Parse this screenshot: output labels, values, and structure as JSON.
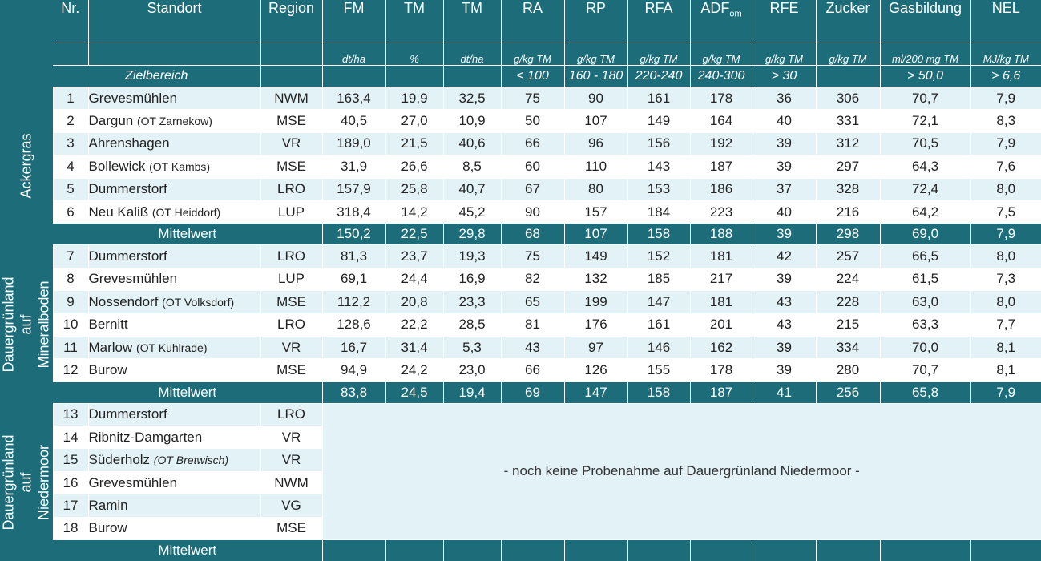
{
  "headers": {
    "nr": "Nr.",
    "standort": "Standort",
    "region": "Region",
    "cols": [
      {
        "name": "FM",
        "unit": "dt/ha"
      },
      {
        "name": "TM",
        "unit": "%"
      },
      {
        "name": "TM",
        "unit": "dt/ha"
      },
      {
        "name": "RA",
        "unit": "g/kg TM"
      },
      {
        "name": "RP",
        "unit": "g/kg TM"
      },
      {
        "name": "RFA",
        "unit": "g/kg TM"
      },
      {
        "name": "ADF",
        "sub": "om",
        "unit": "g/kg TM"
      },
      {
        "name": "RFE",
        "unit": "g/kg TM"
      },
      {
        "name": "Zucker",
        "unit": "g/kg TM"
      },
      {
        "name": "Gasbildung",
        "unit": "ml/200 mg TM"
      },
      {
        "name": "NEL",
        "unit": "MJ/kg TM"
      }
    ]
  },
  "zielbereich": {
    "label": "Zielbereich",
    "values": [
      "",
      "",
      "",
      "< 100",
      "160 - 180",
      "220-240",
      "240-300",
      "> 30",
      "",
      "> 50,0",
      "> 6,6"
    ]
  },
  "groups": [
    {
      "label": "Ackergras",
      "rows": [
        {
          "nr": "1",
          "standort": "Grevesmühlen",
          "ot": "",
          "region": "NWM",
          "values": [
            "163,4",
            "19,9",
            "32,5",
            "75",
            "90",
            "161",
            "178",
            "36",
            "306",
            "70,7",
            "7,9"
          ]
        },
        {
          "nr": "2",
          "standort": "Dargun",
          "ot": "(OT Zarnekow)",
          "region": "MSE",
          "values": [
            "40,5",
            "27,0",
            "10,9",
            "50",
            "107",
            "149",
            "164",
            "40",
            "331",
            "72,1",
            "8,3"
          ]
        },
        {
          "nr": "3",
          "standort": "Ahrenshagen",
          "ot": "",
          "region": "VR",
          "values": [
            "189,0",
            "21,5",
            "40,6",
            "66",
            "96",
            "156",
            "192",
            "39",
            "312",
            "70,5",
            "7,9"
          ]
        },
        {
          "nr": "4",
          "standort": "Bollewick",
          "ot": "(OT Kambs)",
          "region": "MSE",
          "values": [
            "31,9",
            "26,6",
            "8,5",
            "60",
            "110",
            "143",
            "187",
            "39",
            "297",
            "64,3",
            "7,6"
          ]
        },
        {
          "nr": "5",
          "standort": "Dummerstorf",
          "ot": "",
          "region": "LRO",
          "values": [
            "157,9",
            "25,8",
            "40,7",
            "67",
            "80",
            "153",
            "186",
            "37",
            "328",
            "72,4",
            "8,0"
          ]
        },
        {
          "nr": "6",
          "standort": "Neu Kaliß",
          "ot": "(OT Heiddorf)",
          "region": "LUP",
          "values": [
            "318,4",
            "14,2",
            "45,2",
            "90",
            "157",
            "184",
            "223",
            "40",
            "216",
            "64,2",
            "7,5"
          ]
        }
      ],
      "mean": {
        "label": "Mittelwert",
        "values": [
          "150,2",
          "22,5",
          "29,8",
          "68",
          "107",
          "158",
          "188",
          "39",
          "298",
          "69,0",
          "7,9"
        ]
      }
    },
    {
      "label": "Dauergrünland auf Mineralboden",
      "rows": [
        {
          "nr": "7",
          "standort": "Dummerstorf",
          "ot": "",
          "region": "LRO",
          "values": [
            "81,3",
            "23,7",
            "19,3",
            "75",
            "149",
            "152",
            "181",
            "42",
            "257",
            "66,5",
            "8,0"
          ]
        },
        {
          "nr": "8",
          "standort": "Grevesmühlen",
          "ot": "",
          "region": "LUP",
          "values": [
            "69,1",
            "24,4",
            "16,9",
            "82",
            "132",
            "185",
            "217",
            "39",
            "224",
            "61,5",
            "7,3"
          ]
        },
        {
          "nr": "9",
          "standort": "Nossendorf",
          "ot": "(OT Volksdorf)",
          "region": "MSE",
          "values": [
            "112,2",
            "20,8",
            "23,3",
            "65",
            "199",
            "147",
            "181",
            "43",
            "228",
            "63,0",
            "8,0"
          ]
        },
        {
          "nr": "10",
          "standort": "Bernitt",
          "ot": "",
          "region": "LRO",
          "values": [
            "128,6",
            "22,2",
            "28,5",
            "81",
            "176",
            "161",
            "201",
            "43",
            "215",
            "63,3",
            "7,7"
          ]
        },
        {
          "nr": "11",
          "standort": "Marlow",
          "ot": "(OT Kuhlrade)",
          "region": "VR",
          "values": [
            "16,7",
            "31,4",
            "5,3",
            "43",
            "97",
            "146",
            "162",
            "39",
            "334",
            "70,0",
            "8,1"
          ]
        },
        {
          "nr": "12",
          "standort": "Burow",
          "ot": "",
          "region": "MSE",
          "values": [
            "94,9",
            "24,2",
            "23,0",
            "66",
            "126",
            "155",
            "178",
            "39",
            "280",
            "70,7",
            "8,1"
          ]
        }
      ],
      "mean": {
        "label": "Mittelwert",
        "values": [
          "83,8",
          "24,5",
          "19,4",
          "69",
          "147",
          "158",
          "187",
          "41",
          "256",
          "65,8",
          "7,9"
        ]
      }
    },
    {
      "label": "Dauergrünland auf Niedermoor",
      "rows": [
        {
          "nr": "13",
          "standort": "Dummerstorf",
          "ot": "",
          "region": "LRO"
        },
        {
          "nr": "14",
          "standort": "Ribnitz-Damgarten",
          "ot": "",
          "region": "VR"
        },
        {
          "nr": "15",
          "standort": "Süderholz",
          "ot": "(OT Bretwisch)",
          "region": "VR"
        },
        {
          "nr": "16",
          "standort": "Grevesmühlen",
          "ot": "",
          "region": "NWM"
        },
        {
          "nr": "17",
          "standort": "Ramin",
          "ot": "",
          "region": "VG"
        },
        {
          "nr": "18",
          "standort": "Burow",
          "ot": "",
          "region": "MSE"
        }
      ],
      "note": "- noch keine Probenahme auf Dauergrünland Niedermoor -",
      "mean": {
        "label": "Mittelwert",
        "values": [
          "",
          "",
          "",
          "",
          "",
          "",
          "",
          "",
          "",
          "",
          ""
        ]
      }
    }
  ],
  "colors": {
    "teal": "#1d6c7a",
    "light": "#e3f2f7",
    "white": "#ffffff"
  }
}
